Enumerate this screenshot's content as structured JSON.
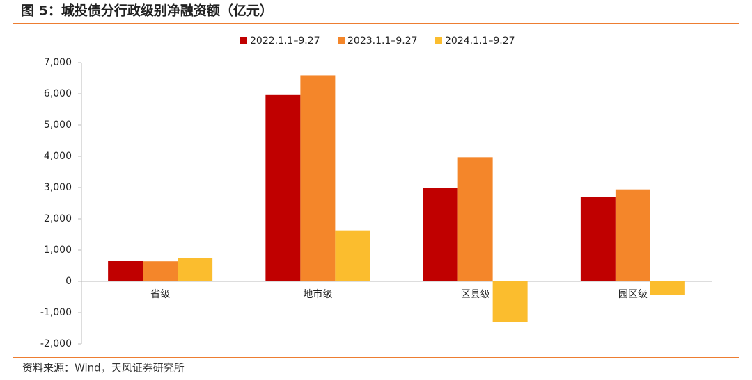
{
  "chart_data": {
    "type": "bar",
    "title": "图 5：城投债分行政级别净融资额（亿元）",
    "source": "资料来源：Wind，天风证券研究所",
    "categories": [
      "省级",
      "地市级",
      "区县级",
      "园区级"
    ],
    "series": [
      {
        "name": "2022.1.1–9.27",
        "color": "#c00000",
        "values": [
          660,
          5960,
          2980,
          2710
        ]
      },
      {
        "name": "2023.1.1–9.27",
        "color": "#f4862a",
        "values": [
          640,
          6590,
          3970,
          2940
        ]
      },
      {
        "name": "2024.1.1–9.27",
        "color": "#fbbd2e",
        "values": [
          750,
          1630,
          -1310,
          -430
        ]
      }
    ],
    "ylim": [
      -2000,
      7000
    ],
    "yticks": [
      {
        "value": -2000,
        "label": "-2,000"
      },
      {
        "value": -1000,
        "label": "-1,000"
      },
      0,
      {
        "value": 1000,
        "label": "1,000"
      },
      {
        "value": 2000,
        "label": "2,000"
      },
      {
        "value": 3000,
        "label": "3,000"
      },
      {
        "value": 4000,
        "label": "4,000"
      },
      {
        "value": 5000,
        "label": "5,000"
      },
      {
        "value": 6000,
        "label": "6,000"
      },
      {
        "value": 7000,
        "label": "7,000"
      }
    ],
    "legend": "top"
  }
}
